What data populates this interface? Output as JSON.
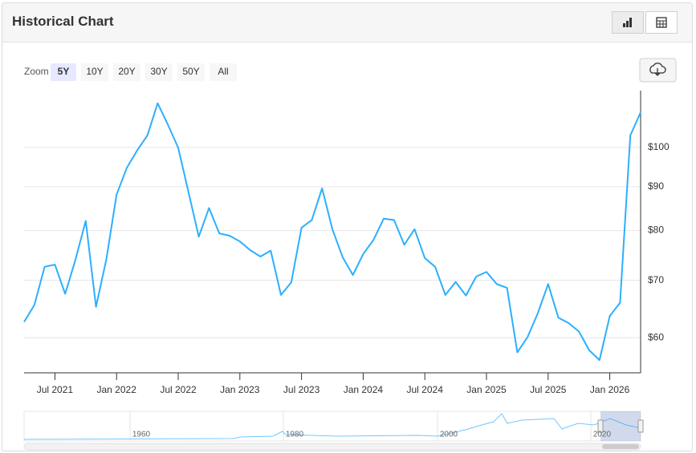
{
  "header": {
    "title": "Historical Chart"
  },
  "zoom": {
    "label": "Zoom",
    "options": [
      "5Y",
      "10Y",
      "20Y",
      "30Y",
      "50Y",
      "All"
    ],
    "active_index": 0
  },
  "navigator": {
    "labels": [
      "1960",
      "1980",
      "2000",
      "2020"
    ]
  },
  "chart_data": {
    "type": "line",
    "color": "#2caffe",
    "log_scale": true,
    "grid": true,
    "x": [
      "2021-04",
      "2021-05",
      "2021-06",
      "2021-07",
      "2021-08",
      "2021-09",
      "2021-10",
      "2021-11",
      "2021-12",
      "2022-01",
      "2022-02",
      "2022-03",
      "2022-04",
      "2022-05",
      "2022-06",
      "2022-07",
      "2022-08",
      "2022-09",
      "2022-10",
      "2022-11",
      "2022-12",
      "2023-01",
      "2023-02",
      "2023-03",
      "2023-04",
      "2023-05",
      "2023-06",
      "2023-07",
      "2023-08",
      "2023-09",
      "2023-10",
      "2023-11",
      "2023-12",
      "2024-01",
      "2024-02",
      "2024-03",
      "2024-04",
      "2024-05",
      "2024-06",
      "2024-07",
      "2024-08",
      "2024-09",
      "2024-10",
      "2024-11",
      "2024-12",
      "2025-01",
      "2025-02",
      "2025-03",
      "2025-04",
      "2025-05",
      "2025-06",
      "2025-07",
      "2025-08",
      "2025-09",
      "2025-10",
      "2025-11",
      "2025-12",
      "2026-01",
      "2026-02",
      "2026-03",
      "2026-04"
    ],
    "values": [
      62.6,
      65.5,
      72.6,
      73.0,
      67.5,
      74.0,
      82.1,
      65.2,
      74.0,
      88.1,
      94.7,
      99.2,
      103.3,
      112.6,
      106.3,
      99.9,
      88.7,
      78.7,
      85.0,
      79.4,
      78.9,
      77.7,
      75.9,
      74.6,
      75.8,
      67.3,
      69.6,
      80.6,
      82.3,
      89.6,
      80.3,
      74.5,
      71.0,
      75.1,
      78.0,
      82.6,
      82.3,
      77.0,
      80.3,
      74.3,
      72.6,
      67.3,
      69.7,
      67.2,
      70.7,
      71.6,
      69.3,
      68.6,
      57.7,
      60.1,
      64.1,
      69.3,
      63.3,
      62.4,
      61.0,
      58.0,
      56.5,
      63.6,
      65.9,
      103.3,
      109.9
    ],
    "xlim": [
      "2021-04",
      "2026-04"
    ],
    "xticks": [
      {
        "value": "2021-07",
        "label": "Jul 2021"
      },
      {
        "value": "2022-01",
        "label": "Jan 2022"
      },
      {
        "value": "2022-07",
        "label": "Jul 2022"
      },
      {
        "value": "2023-01",
        "label": "Jan 2023"
      },
      {
        "value": "2023-07",
        "label": "Jul 2023"
      },
      {
        "value": "2024-01",
        "label": "Jan 2024"
      },
      {
        "value": "2024-07",
        "label": "Jul 2024"
      },
      {
        "value": "2025-01",
        "label": "Jan 2025"
      },
      {
        "value": "2025-07",
        "label": "Jul 2025"
      },
      {
        "value": "2026-01",
        "label": "Jan 2026"
      }
    ],
    "ylim": [
      54.6,
      116.5
    ],
    "yticks": [
      {
        "value": 60,
        "label": "$60"
      },
      {
        "value": 70,
        "label": "$70"
      },
      {
        "value": 80,
        "label": "$80"
      },
      {
        "value": 90,
        "label": "$90"
      },
      {
        "value": 100,
        "label": "$100"
      }
    ]
  }
}
